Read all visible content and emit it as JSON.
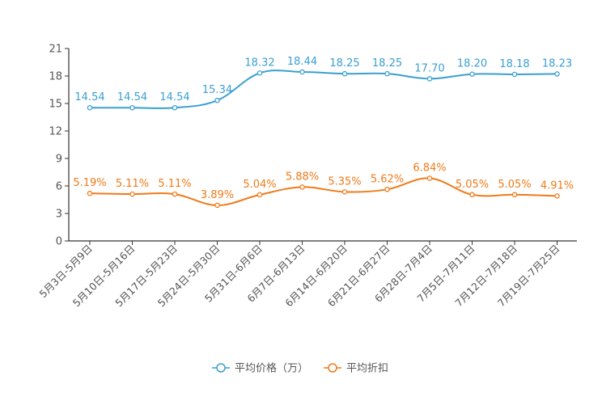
{
  "chart_data": {
    "type": "line",
    "categories": [
      "5月3日-5月9日",
      "5月10日-5月16日",
      "5月17日-5月23日",
      "5月24日-5月30日",
      "5月31日-6月6日",
      "6月7日-6月13日",
      "6月14日-6月20日",
      "6月21日-6月27日",
      "6月28日-7月4日",
      "7月5日-7月11日",
      "7月12日-7月18日",
      "7月19日-7月25日"
    ],
    "ylim": [
      0,
      21
    ],
    "yticks": [
      0,
      3,
      6,
      9,
      12,
      15,
      18,
      21
    ],
    "series": [
      {
        "name": "平均价格（万）",
        "color": "#3a9fd1",
        "values": [
          14.54,
          14.54,
          14.54,
          15.34,
          18.32,
          18.44,
          18.25,
          18.25,
          17.7,
          18.2,
          18.18,
          18.23
        ],
        "labels": [
          "14.54",
          "14.54",
          "14.54",
          "15.34",
          "18.32",
          "18.44",
          "18.25",
          "18.25",
          "17.70",
          "18.20",
          "18.18",
          "18.23"
        ]
      },
      {
        "name": "平均折扣",
        "color": "#f07a18",
        "values": [
          5.19,
          5.11,
          5.11,
          3.89,
          5.04,
          5.88,
          5.35,
          5.62,
          6.84,
          5.05,
          5.05,
          4.91
        ],
        "labels": [
          "5.19%",
          "5.11%",
          "5.11%",
          "3.89%",
          "5.04%",
          "5.88%",
          "5.35%",
          "5.62%",
          "6.84%",
          "5.05%",
          "5.05%",
          "4.91%"
        ]
      }
    ],
    "legend_position": "bottom-center"
  }
}
